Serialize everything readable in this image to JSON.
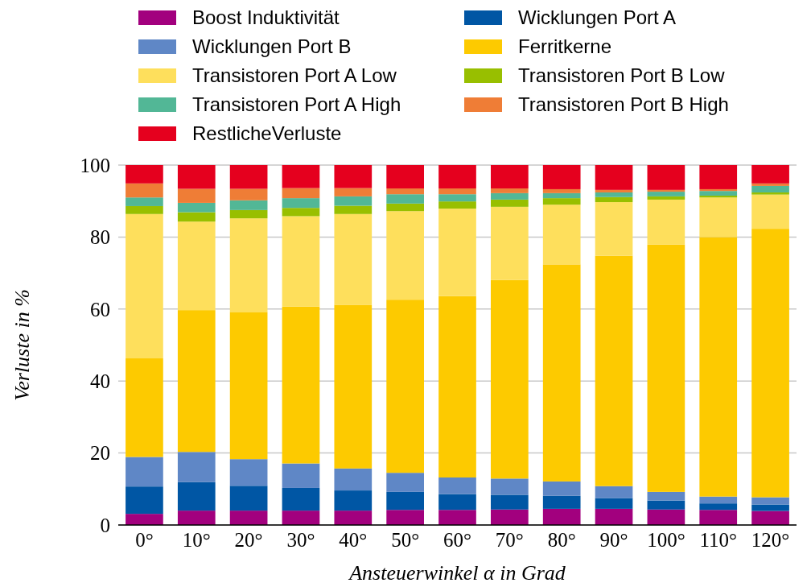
{
  "chart_data": {
    "type": "bar",
    "stacked": true,
    "xlabel": "Ansteuerwinkel α in Grad",
    "ylabel": "Verluste in %",
    "categories": [
      "0°",
      "10°",
      "20°",
      "30°",
      "40°",
      "50°",
      "60°",
      "70°",
      "80°",
      "90°",
      "100°",
      "110°",
      "120°"
    ],
    "ylim": [
      0,
      100
    ],
    "yticks": [
      0,
      20,
      40,
      60,
      80,
      100
    ],
    "grid": "y",
    "legend": "top",
    "series": [
      {
        "name": "Boost Induktivität",
        "color": "#a2007e",
        "values": [
          3.1,
          4.0,
          4.0,
          4.0,
          4.0,
          4.2,
          4.2,
          4.3,
          4.5,
          4.5,
          4.3,
          4.2,
          3.9
        ]
      },
      {
        "name": "Wicklungen Port A",
        "color": "#0056a4",
        "values": [
          7.6,
          7.9,
          6.9,
          6.3,
          5.6,
          5.0,
          4.4,
          4.1,
          3.6,
          3.0,
          2.5,
          1.8,
          1.8
        ]
      },
      {
        "name": "Wicklungen Port B",
        "color": "#5f87c6",
        "values": [
          8.2,
          8.4,
          7.4,
          6.8,
          6.1,
          5.3,
          4.6,
          4.5,
          4.0,
          3.3,
          2.4,
          1.9,
          2.0
        ]
      },
      {
        "name": "Ferritkerne",
        "color": "#fdca00",
        "values": [
          27.4,
          39.4,
          40.9,
          43.6,
          45.5,
          48.1,
          50.4,
          55.2,
          60.3,
          64.0,
          68.7,
          72.1,
          74.6
        ]
      },
      {
        "name": "Transistoren Port A Low",
        "color": "#fedf5c",
        "values": [
          40.1,
          24.6,
          26.0,
          25.1,
          25.2,
          24.6,
          24.3,
          20.3,
          16.6,
          14.9,
          12.5,
          11.0,
          9.5
        ]
      },
      {
        "name": "Transistoren Port B Low",
        "color": "#98bf00",
        "values": [
          2.2,
          2.6,
          2.3,
          2.3,
          2.3,
          2.1,
          2.0,
          2.0,
          1.8,
          1.4,
          0.9,
          0.5,
          0.6
        ]
      },
      {
        "name": "Transistoren Port A High",
        "color": "#52b796",
        "values": [
          2.4,
          2.6,
          2.7,
          2.7,
          2.6,
          2.6,
          2.0,
          1.8,
          1.4,
          1.3,
          1.3,
          1.3,
          1.8
        ]
      },
      {
        "name": "Transistoren Port B High",
        "color": "#ef7d36",
        "values": [
          3.9,
          3.9,
          3.2,
          2.8,
          2.3,
          1.6,
          1.6,
          1.3,
          1.1,
          0.7,
          0.5,
          0.5,
          0.7
        ]
      },
      {
        "name": "RestlicheVerluste",
        "color": "#e5001e",
        "values": [
          5.1,
          6.6,
          6.6,
          6.4,
          6.4,
          6.5,
          6.5,
          6.5,
          6.7,
          6.9,
          6.9,
          6.7,
          5.1
        ]
      }
    ]
  }
}
